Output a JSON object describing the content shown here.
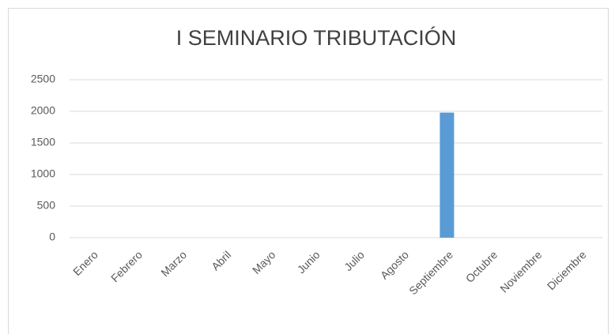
{
  "chart_data": {
    "type": "bar",
    "title": "I SEMINARIO TRIBUTACIÓN",
    "categories": [
      "Enero",
      "Febrero",
      "Marzo",
      "Abril",
      "Mayo",
      "Junio",
      "Julio",
      "Agosto",
      "Septiembre",
      "Octubre",
      "Noviembre",
      "Diciembre"
    ],
    "values": [
      0,
      0,
      0,
      0,
      0,
      0,
      0,
      0,
      1980,
      0,
      0,
      0
    ],
    "color": "#5b9bd5",
    "ylim": [
      0,
      2500
    ],
    "yticks": [
      0,
      500,
      1000,
      1500,
      2000,
      2500
    ],
    "grid": true
  }
}
